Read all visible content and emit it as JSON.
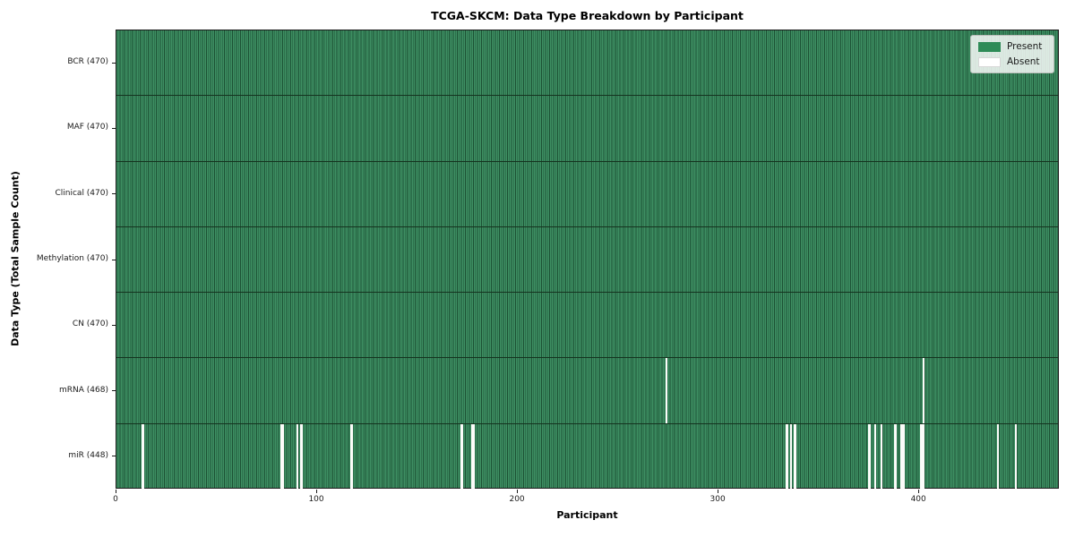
{
  "title": "TCGA-SKCM: Data Type Breakdown by Participant",
  "xlabel": "Participant",
  "ylabel": "Data Type (Total Sample Count)",
  "legend": {
    "items": [
      {
        "label": "Present",
        "color": "#2E8B57"
      },
      {
        "label": "Absent",
        "color": "#FFFFFF"
      }
    ]
  },
  "colors": {
    "present_fill": "#3E9063",
    "present_edge": "#1C5134",
    "absent_fill": "#FCFCFA",
    "spine": "#1A1A1A"
  },
  "chart_data": {
    "type": "heatmap",
    "title": "TCGA-SKCM: Data Type Breakdown by Participant",
    "xlabel": "Participant",
    "ylabel": "Data Type (Total Sample Count)",
    "x_range": [
      0,
      470
    ],
    "x_ticks": [
      0,
      100,
      200,
      300,
      400
    ],
    "legend": [
      "Present",
      "Absent"
    ],
    "legend_position": "upper right",
    "grid": false,
    "rows": [
      {
        "label": "BCR (470)",
        "data_type": "BCR",
        "present_count": 470,
        "absent_participants": []
      },
      {
        "label": "MAF (470)",
        "data_type": "MAF",
        "present_count": 470,
        "absent_participants": []
      },
      {
        "label": "Clinical (470)",
        "data_type": "Clinical",
        "present_count": 470,
        "absent_participants": []
      },
      {
        "label": "Methylation (470)",
        "data_type": "Methylation",
        "present_count": 470,
        "absent_participants": []
      },
      {
        "label": "CN (470)",
        "data_type": "CN",
        "present_count": 470,
        "absent_participants": []
      },
      {
        "label": "mRNA (468)",
        "data_type": "mRNA",
        "present_count": 468,
        "absent_participants": [
          274,
          402
        ]
      },
      {
        "label": "miR (448)",
        "data_type": "miR",
        "present_count": 448,
        "absent_participants": [
          13,
          82,
          83,
          90,
          92,
          117,
          172,
          177,
          178,
          334,
          336,
          338,
          375,
          378,
          381,
          388,
          391,
          392,
          401,
          402,
          439,
          448
        ]
      }
    ]
  }
}
